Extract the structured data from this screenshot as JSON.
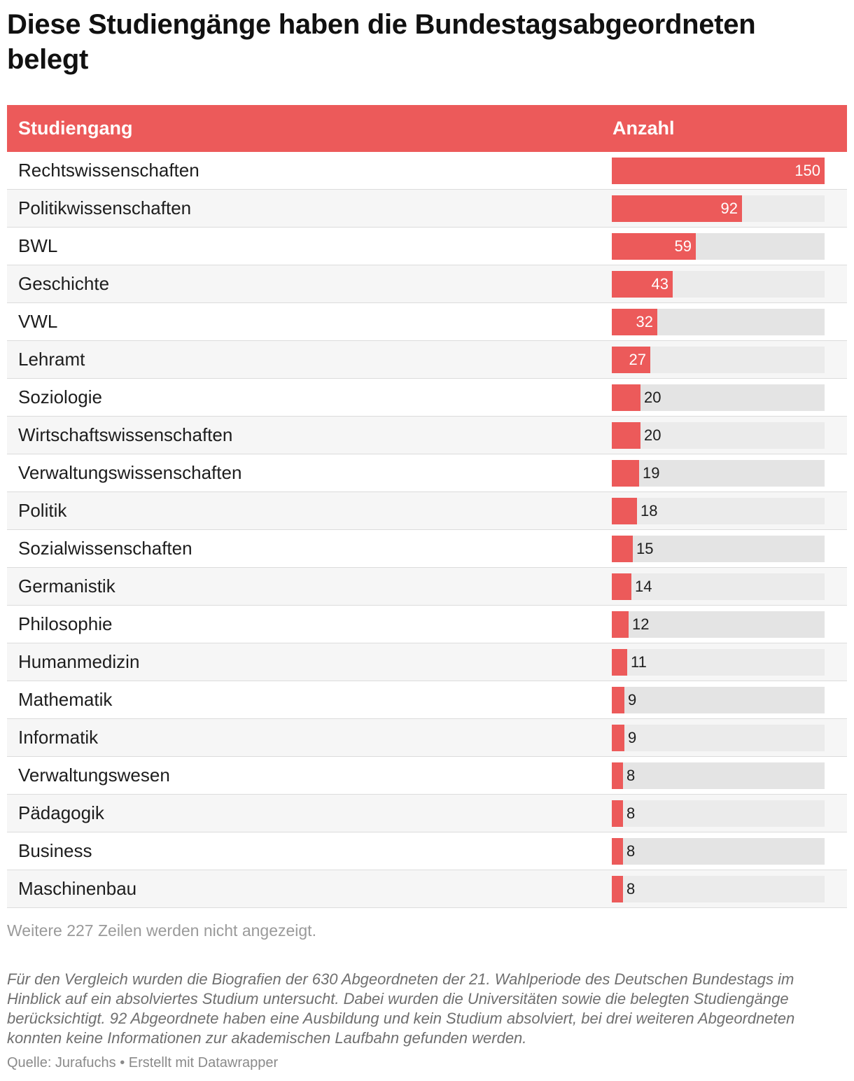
{
  "title": "Diese Studiengänge haben die Bundestagsabgeordneten belegt",
  "chart_data": {
    "type": "bar",
    "orientation": "horizontal",
    "columns": [
      "Studiengang",
      "Anzahl"
    ],
    "categories": [
      "Rechtswissenschaften",
      "Politikwissenschaften",
      "BWL",
      "Geschichte",
      "VWL",
      "Lehramt",
      "Soziologie",
      "Wirtschaftswissenschaften",
      "Verwaltungswissenschaften",
      "Politik",
      "Sozialwissenschaften",
      "Germanistik",
      "Philosophie",
      "Humanmedizin",
      "Mathematik",
      "Informatik",
      "Verwaltungswesen",
      "Pädagogik",
      "Business",
      "Maschinenbau"
    ],
    "values": [
      150,
      92,
      59,
      43,
      32,
      27,
      20,
      20,
      19,
      18,
      15,
      14,
      12,
      11,
      9,
      9,
      8,
      8,
      8,
      8
    ],
    "xlim": [
      0,
      150
    ],
    "bar_color": "#ec5a5a",
    "track_color": "#e4e4e4",
    "header_color": "#ec5a5a"
  },
  "more_rows_text": "Weitere 227 Zeilen werden nicht angezeigt.",
  "note": "Für den Vergleich wurden die Biografien der 630 Abgeordneten der 21. Wahlperiode des Deutschen Bundestags im Hinblick auf ein absolviertes Studium untersucht. Dabei wurden die Universitäten sowie die belegten Studiengänge berücksichtigt. 92 Abgeordnete haben eine Ausbildung und kein Studium absolviert, bei drei weiteren Abgeordneten konnten keine Informationen zur akademischen Laufbahn gefunden werden.",
  "source": "Quelle: Jurafuchs • Erstellt mit Datawrapper"
}
